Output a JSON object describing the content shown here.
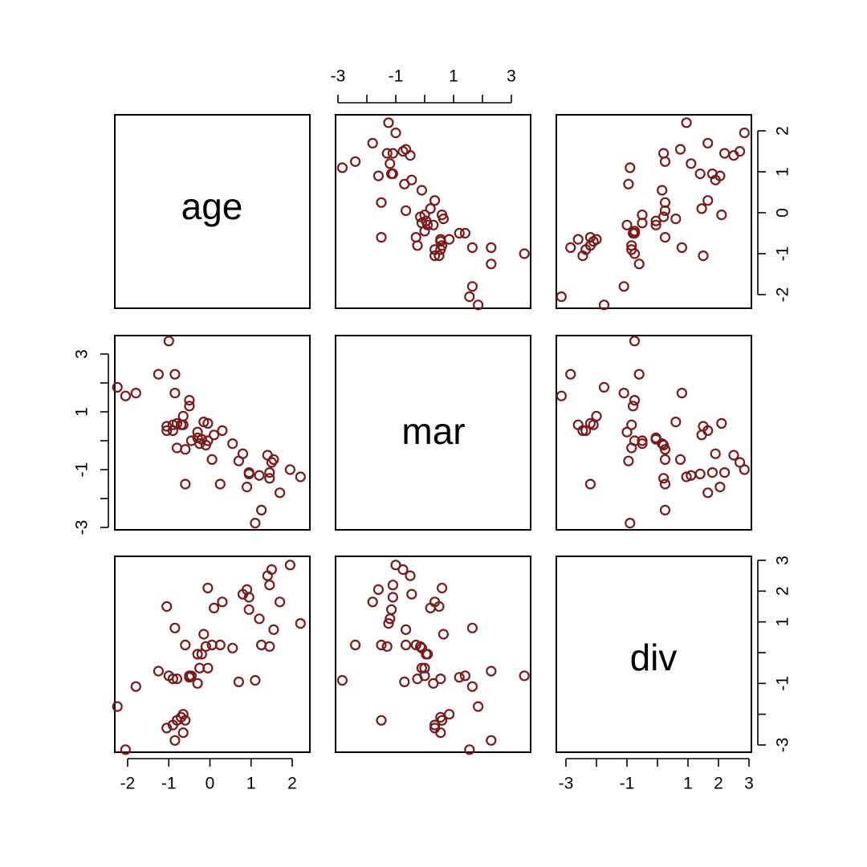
{
  "chart_data": {
    "type": "scatter",
    "layout": "scatterplot-matrix",
    "variables": [
      "age",
      "mar",
      "div"
    ],
    "point_color": "#7A1A1A",
    "ranges": {
      "age": [
        -2.3,
        2.3
      ],
      "mar": [
        -3.1,
        3.6
      ],
      "div": [
        -3.3,
        3.1
      ]
    },
    "ticks": {
      "age": [
        -2,
        -1,
        0,
        1,
        2
      ],
      "mar": [
        -3,
        -2,
        -1,
        0,
        1,
        2,
        3
      ],
      "div": [
        -3,
        -2,
        -1,
        0,
        1,
        2,
        3
      ]
    },
    "tick_labels": {
      "age": [
        "-2",
        "-1",
        "0",
        "1",
        "2"
      ],
      "mar": [
        "-3",
        "",
        "-1",
        "",
        "1",
        "",
        "3"
      ],
      "div": [
        "-3",
        "",
        "-1",
        "",
        "1",
        "2",
        "3"
      ]
    },
    "points": [
      {
        "age": 2.2,
        "mar": -1.25,
        "div": 0.95
      },
      {
        "age": 1.95,
        "mar": -1.0,
        "div": 2.85
      },
      {
        "age": 1.7,
        "mar": -1.8,
        "div": 1.65
      },
      {
        "age": 1.55,
        "mar": -0.65,
        "div": 0.75
      },
      {
        "age": 1.5,
        "mar": -0.75,
        "div": 2.7
      },
      {
        "age": 1.45,
        "mar": -1.3,
        "div": 0.2
      },
      {
        "age": 1.45,
        "mar": -1.1,
        "div": 2.2
      },
      {
        "age": 1.4,
        "mar": -0.5,
        "div": 2.5
      },
      {
        "age": 1.25,
        "mar": -2.4,
        "div": 0.25
      },
      {
        "age": 1.2,
        "mar": -1.2,
        "div": 1.1
      },
      {
        "age": 1.1,
        "mar": -2.85,
        "div": -0.9
      },
      {
        "age": 0.95,
        "mar": -1.15,
        "div": 1.4
      },
      {
        "age": 0.95,
        "mar": -1.1,
        "div": 1.8
      },
      {
        "age": 0.9,
        "mar": -1.6,
        "div": 2.05
      },
      {
        "age": 0.8,
        "mar": -0.45,
        "div": 1.9
      },
      {
        "age": 0.7,
        "mar": -0.7,
        "div": -0.95
      },
      {
        "age": 0.55,
        "mar": -0.1,
        "div": 0.15
      },
      {
        "age": 0.3,
        "mar": 0.35,
        "div": 1.65
      },
      {
        "age": 0.25,
        "mar": -1.5,
        "div": 0.25
      },
      {
        "age": 0.1,
        "mar": 0.2,
        "div": 1.45
      },
      {
        "age": 0.05,
        "mar": -0.65,
        "div": 0.25
      },
      {
        "age": -0.05,
        "mar": 0.6,
        "div": 2.1
      },
      {
        "age": -0.05,
        "mar": 0.0,
        "div": -0.5
      },
      {
        "age": -0.1,
        "mar": -0.15,
        "div": 0.2
      },
      {
        "age": -0.15,
        "mar": 0.65,
        "div": 0.6
      },
      {
        "age": -0.2,
        "mar": 0.05,
        "div": -0.05
      },
      {
        "age": -0.25,
        "mar": -0.1,
        "div": -0.5
      },
      {
        "age": -0.3,
        "mar": 0.3,
        "div": -1.0
      },
      {
        "age": -0.3,
        "mar": 0.1,
        "div": -0.05
      },
      {
        "age": -0.45,
        "mar": 0.0,
        "div": -0.75
      },
      {
        "age": -0.5,
        "mar": 1.4,
        "div": -0.75
      },
      {
        "age": -0.5,
        "mar": 1.2,
        "div": -0.8
      },
      {
        "age": -0.6,
        "mar": -0.3,
        "div": 0.25
      },
      {
        "age": -0.6,
        "mar": -1.5,
        "div": -2.2
      },
      {
        "age": -0.65,
        "mar": 0.55,
        "div": -2.6
      },
      {
        "age": -0.65,
        "mar": 0.85,
        "div": -2.0
      },
      {
        "age": -0.7,
        "mar": 0.55,
        "div": -2.1
      },
      {
        "age": -0.8,
        "mar": 0.6,
        "div": -2.2
      },
      {
        "age": -0.8,
        "mar": -0.25,
        "div": -0.85
      },
      {
        "age": -0.85,
        "mar": 1.65,
        "div": 0.8
      },
      {
        "age": -0.85,
        "mar": 2.3,
        "div": -2.85
      },
      {
        "age": -0.9,
        "mar": 0.35,
        "div": -2.35
      },
      {
        "age": -0.9,
        "mar": 0.55,
        "div": -0.85
      },
      {
        "age": -1.0,
        "mar": 3.45,
        "div": -0.75
      },
      {
        "age": -1.05,
        "mar": 0.35,
        "div": -2.45
      },
      {
        "age": -1.05,
        "mar": 0.5,
        "div": 1.5
      },
      {
        "age": -1.25,
        "mar": 2.3,
        "div": -0.6
      },
      {
        "age": -1.8,
        "mar": 1.65,
        "div": -1.1
      },
      {
        "age": -2.05,
        "mar": 1.55,
        "div": -3.15
      },
      {
        "age": -2.25,
        "mar": 1.85,
        "div": -1.75
      }
    ]
  }
}
